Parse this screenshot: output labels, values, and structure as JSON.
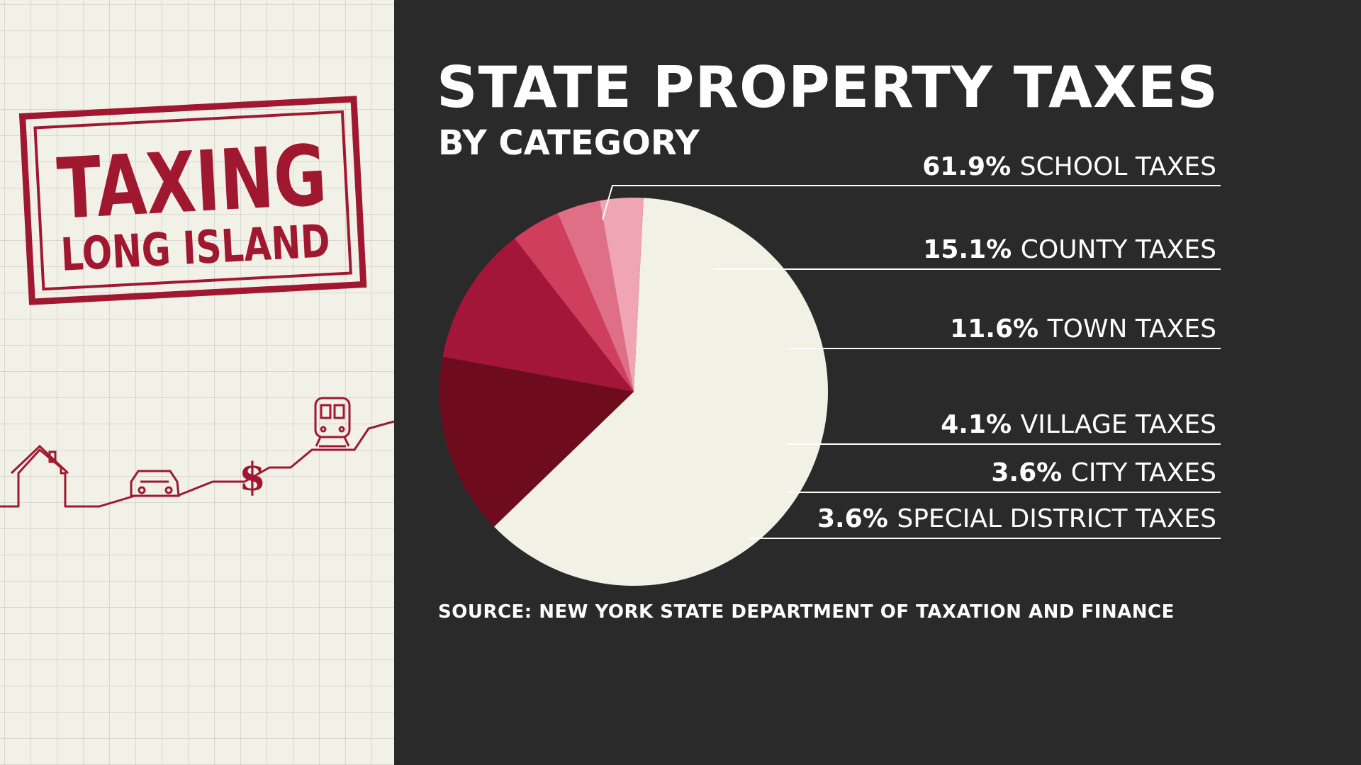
{
  "branding": {
    "stamp_line1": "TAXING",
    "stamp_line2": "LONG ISLAND",
    "stamp_color": "#a0182f",
    "icons": [
      "house-icon",
      "car-icon",
      "dollar-icon",
      "train-icon"
    ]
  },
  "chart_data": {
    "type": "pie",
    "title": "STATE PROPERTY TAXES",
    "subtitle": "BY CATEGORY",
    "source": "SOURCE: NEW YORK STATE DEPARTMENT OF TAXATION AND FINANCE",
    "slices": [
      {
        "label": "SCHOOL TAXES",
        "value": 61.9,
        "value_label": "61.9%",
        "color": "#f2f1e6"
      },
      {
        "label": "COUNTY TAXES",
        "value": 15.1,
        "value_label": "15.1%",
        "color": "#6e0c1e"
      },
      {
        "label": "TOWN TAXES",
        "value": 11.6,
        "value_label": "11.6%",
        "color": "#a3163a"
      },
      {
        "label": "VILLAGE TAXES",
        "value": 4.1,
        "value_label": "4.1%",
        "color": "#d03e5e"
      },
      {
        "label": "CITY TAXES",
        "value": 3.6,
        "value_label": "3.6%",
        "color": "#df6f86"
      },
      {
        "label": "SPECIAL DISTRICT TAXES",
        "value": 3.6,
        "value_label": "3.6%",
        "color": "#f0a5b4"
      }
    ]
  }
}
